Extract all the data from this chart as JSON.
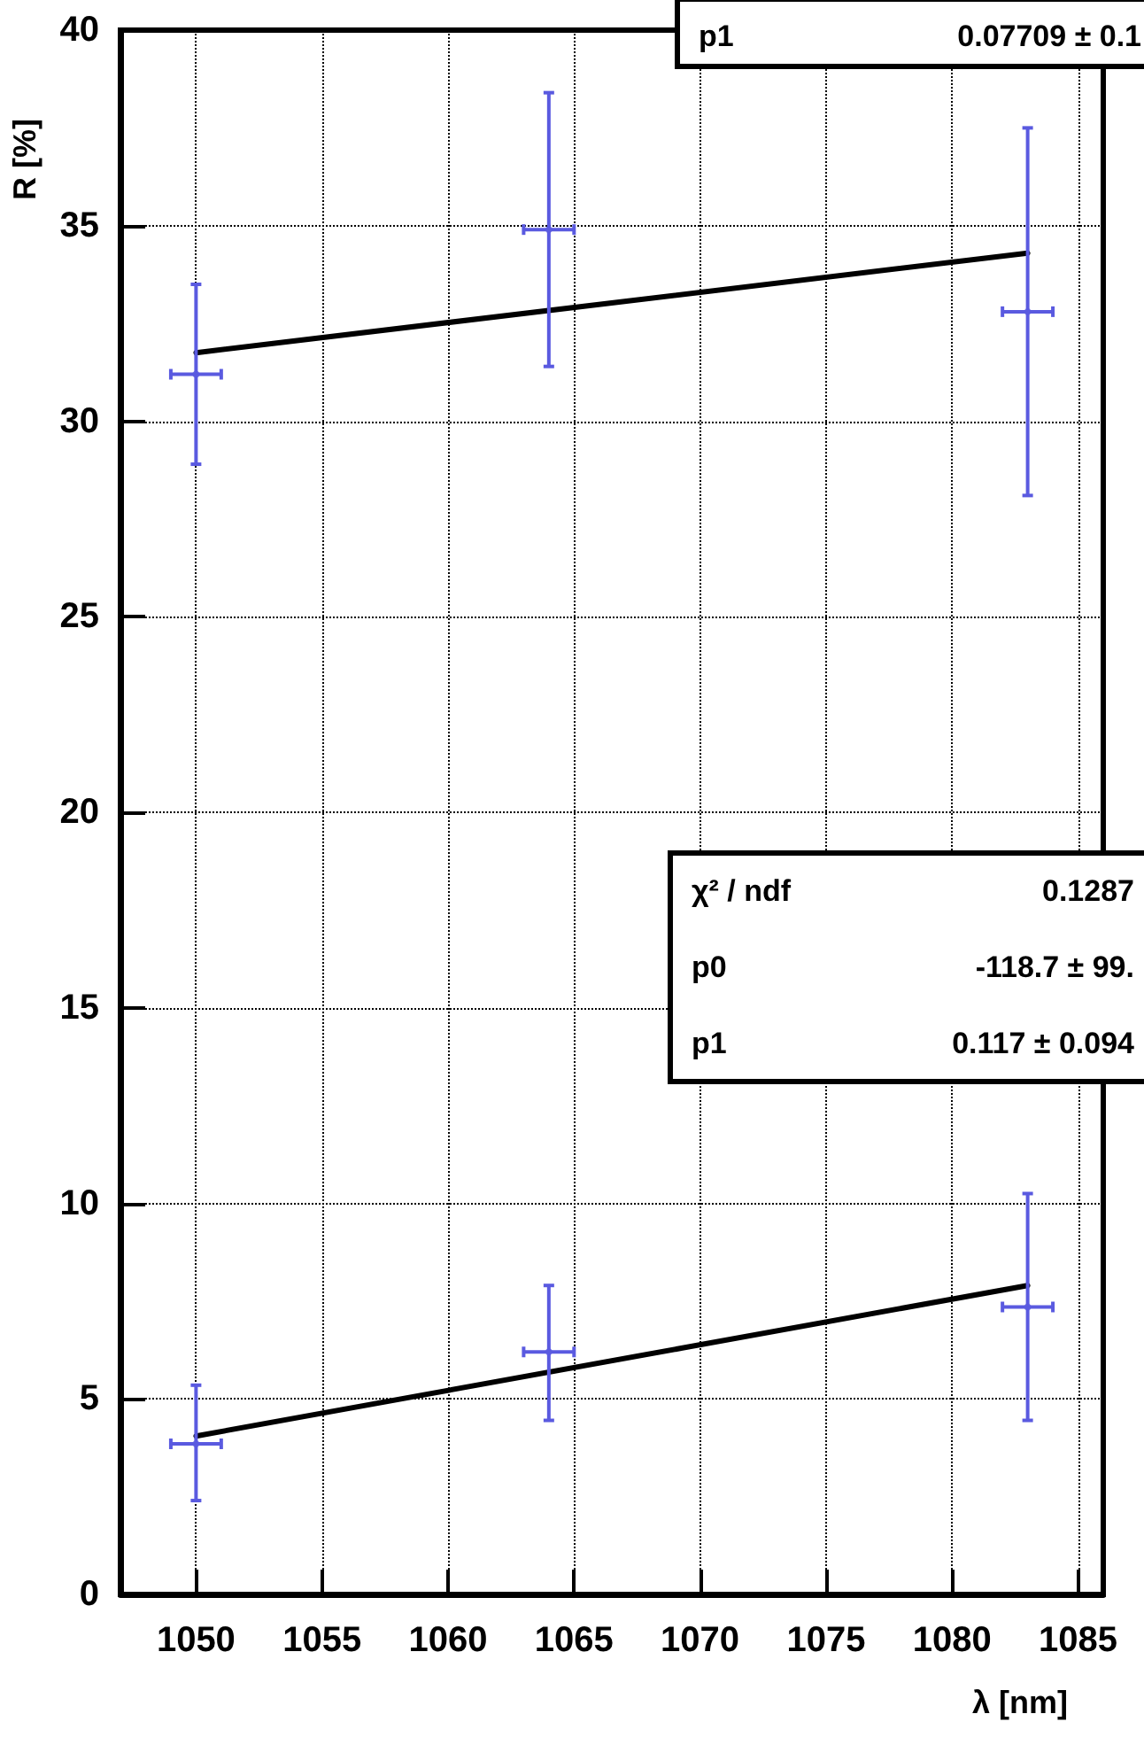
{
  "chart_data": {
    "type": "scatter",
    "xlabel": "λ [nm]",
    "ylabel": "R [%]",
    "xlim": [
      1047,
      1086
    ],
    "xticks": [
      1050,
      1055,
      1060,
      1065,
      1070,
      1075,
      1080,
      1085
    ],
    "ylim": [
      0,
      40
    ],
    "yticks": [
      0,
      5,
      10,
      15,
      20,
      25,
      30,
      35,
      40
    ],
    "grid": true,
    "series": [
      {
        "color": "#5a5ae0",
        "x": [
          1050,
          1064,
          1083
        ],
        "values": [
          31.2,
          34.9,
          32.8
        ],
        "errors": [
          [
            28.9,
            33.5
          ],
          [
            31.4,
            38.4
          ],
          [
            28.1,
            37.5
          ]
        ],
        "xerrors": [
          1,
          1,
          1
        ]
      },
      {
        "color": "#5a5ae0",
        "x": [
          1050,
          1064,
          1083
        ],
        "values": [
          3.85,
          6.2,
          7.35
        ],
        "errors": [
          [
            2.4,
            5.35
          ],
          [
            4.45,
            7.9
          ],
          [
            4.45,
            10.25
          ]
        ],
        "xerrors": [
          1,
          1,
          1
        ]
      },
      {
        "type": "line",
        "marker": "none",
        "color": "#000000",
        "x": [
          1050,
          1083
        ],
        "values": [
          31.75,
          34.3
        ]
      },
      {
        "type": "line",
        "marker": "none",
        "color": "#000000",
        "x": [
          1050,
          1083
        ],
        "values": [
          4.05,
          7.9
        ]
      }
    ],
    "annotations": [
      "p1",
      "0.07709 ± 0.1",
      "χ² / ndf",
      "0.1287",
      "p0",
      "-118.7 ± 99.",
      "p1",
      "0.117 ± 0.094"
    ]
  }
}
